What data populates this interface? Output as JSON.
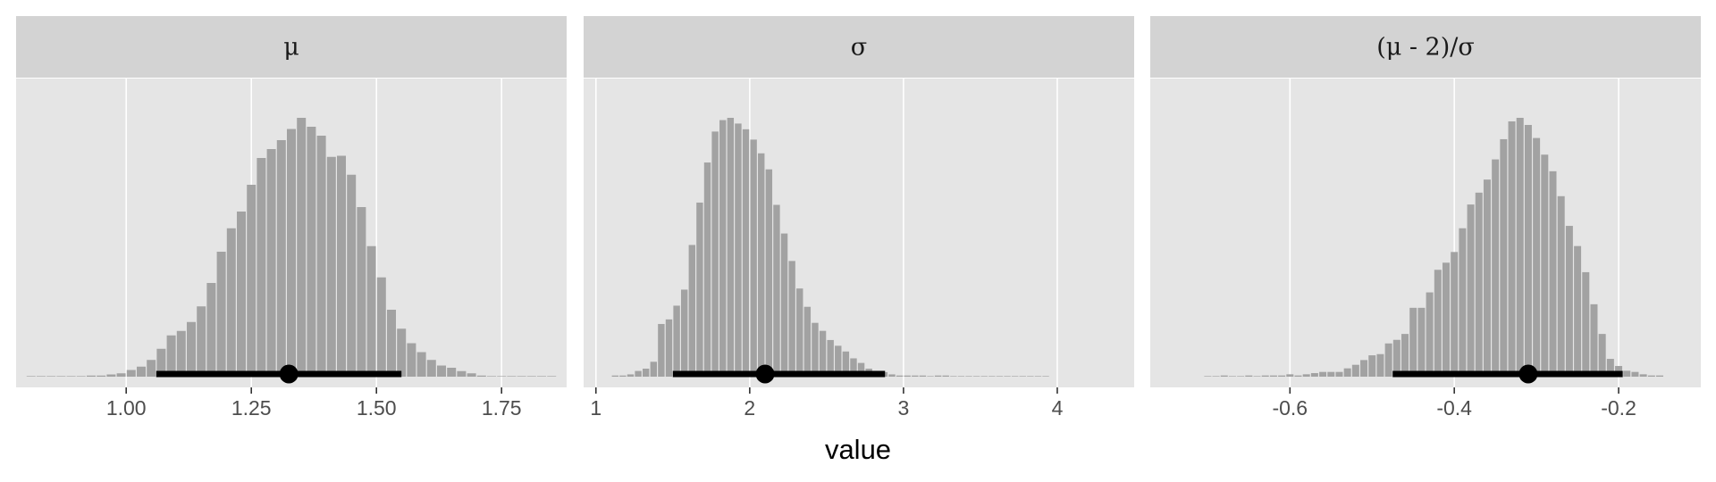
{
  "figure": {
    "xlabel": "value",
    "colors": {
      "panel_bg": "#e5e5e5",
      "strip_bg": "#d3d3d3",
      "bars": "#a2a2a2",
      "interval": "#000000",
      "tick_text": "#4d4d4d"
    }
  },
  "chart_data": [
    {
      "type": "bar",
      "facet_label": "μ",
      "title": "",
      "xlabel": "value",
      "ylabel": "",
      "xlim": [
        0.78,
        1.88
      ],
      "xticks": [
        1.0,
        1.25,
        1.5,
        1.75
      ],
      "xtick_labels": [
        "1.00",
        "1.25",
        "1.50",
        "1.75"
      ],
      "bins": {
        "start": 0.8,
        "width": 0.02,
        "counts": [
          0,
          0,
          0,
          0,
          0,
          0,
          1,
          1,
          2,
          3,
          6,
          9,
          15,
          25,
          37,
          41,
          49,
          63,
          84,
          112,
          133,
          148,
          172,
          196,
          204,
          212,
          222,
          232,
          224,
          216,
          197,
          198,
          181,
          152,
          117,
          89,
          60,
          43,
          30,
          22,
          15,
          10,
          8,
          5,
          3,
          1,
          0,
          0,
          0,
          0,
          0,
          0,
          0
        ]
      },
      "point": 1.325,
      "interval": [
        1.06,
        1.55
      ],
      "grid": true,
      "legend": "none"
    },
    {
      "type": "bar",
      "facet_label": "σ",
      "title": "",
      "xlabel": "value",
      "ylabel": "",
      "xlim": [
        0.92,
        4.5
      ],
      "xticks": [
        1,
        2,
        3,
        4
      ],
      "xtick_labels": [
        "1",
        "2",
        "3",
        "4"
      ],
      "bins": {
        "start": 1.1,
        "width": 0.05,
        "counts": [
          1,
          1,
          2,
          5,
          7,
          13,
          46,
          50,
          62,
          76,
          115,
          152,
          187,
          214,
          224,
          226,
          221,
          216,
          207,
          195,
          181,
          150,
          125,
          101,
          77,
          61,
          47,
          40,
          32,
          27,
          22,
          16,
          12,
          7,
          4,
          4,
          2,
          1,
          1,
          1,
          1,
          0,
          1,
          1,
          0,
          0,
          0,
          0,
          0,
          0,
          0,
          0,
          0,
          0,
          0,
          0,
          0
        ]
      },
      "point": 2.1,
      "interval": [
        1.5,
        2.88
      ],
      "grid": true,
      "legend": "none"
    },
    {
      "type": "bar",
      "facet_label": "(μ - 2)/σ",
      "title": "",
      "xlabel": "value",
      "ylabel": "",
      "xlim": [
        -0.77,
        -0.1
      ],
      "xticks": [
        -0.6,
        -0.4,
        -0.2
      ],
      "xtick_labels": [
        "-0.6",
        "-0.4",
        "-0.2"
      ],
      "bins": {
        "start": -0.705,
        "width": 0.01,
        "counts": [
          0,
          0,
          1,
          0,
          0,
          1,
          0,
          1,
          1,
          1,
          2,
          1,
          2,
          3,
          4,
          4,
          4,
          7,
          10,
          14,
          18,
          19,
          28,
          31,
          36,
          58,
          58,
          71,
          90,
          96,
          105,
          125,
          145,
          155,
          166,
          183,
          200,
          215,
          218,
          212,
          201,
          187,
          173,
          152,
          127,
          110,
          88,
          61,
          36,
          15,
          9,
          5,
          4,
          2,
          1,
          1
        ]
      },
      "point": -0.31,
      "interval": [
        -0.475,
        -0.195
      ],
      "grid": true,
      "legend": "none"
    }
  ]
}
